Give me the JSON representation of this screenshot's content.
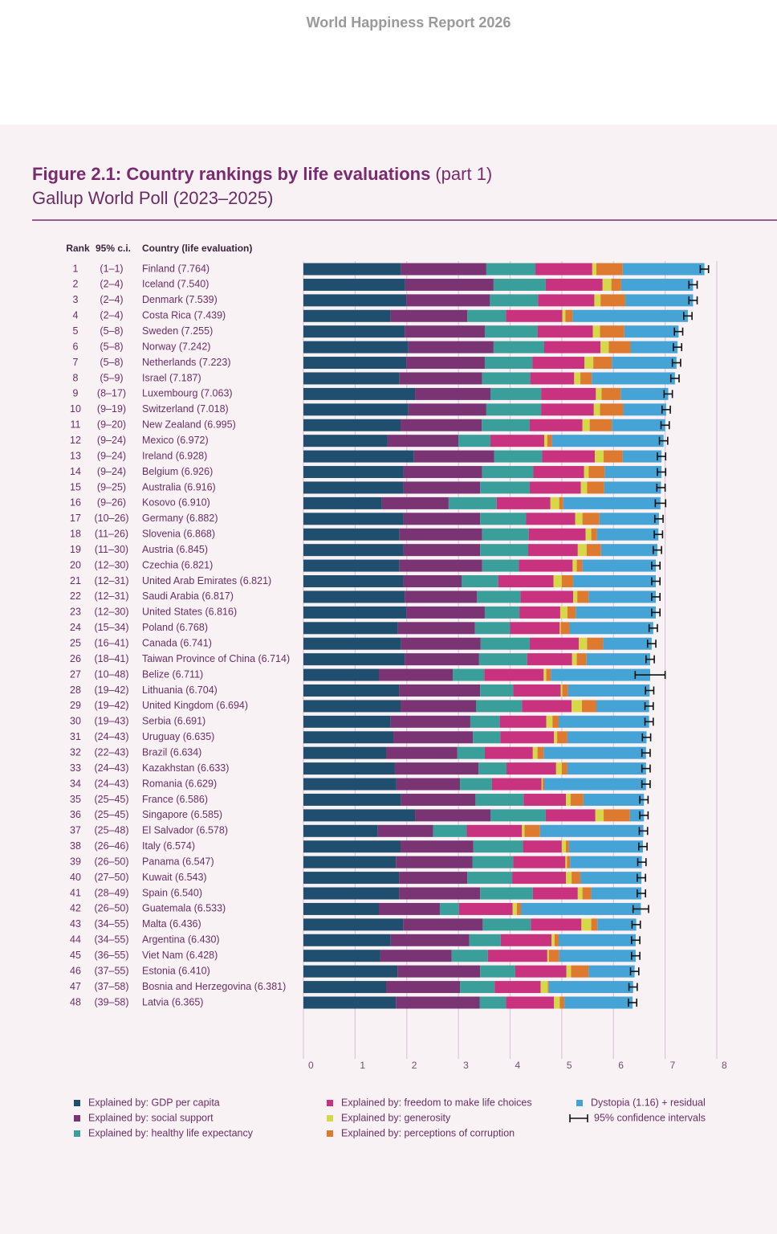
{
  "header": "World Happiness Report 2026",
  "chart_data": {
    "type": "bar",
    "orientation": "horizontal",
    "stacked": true,
    "title": "Figure 2.1: Country rankings by life evaluations",
    "title_suffix": "(part 1)",
    "subtitle": "Gallup World Poll (2023–2025)",
    "column_headers": [
      "Rank",
      "95% c.i.",
      "Country (life evaluation)"
    ],
    "ranks": [
      1,
      2,
      3,
      4,
      5,
      6,
      7,
      8,
      9,
      10,
      11,
      12,
      13,
      14,
      15,
      16,
      17,
      18,
      19,
      20,
      21,
      22,
      23,
      24,
      25,
      26,
      27,
      28,
      29,
      30,
      31,
      32,
      33,
      34,
      35,
      36,
      37,
      38,
      39,
      40,
      41,
      42,
      43,
      44,
      45,
      46,
      47,
      48
    ],
    "rank_ranges": [
      "(1–1)",
      "(2–4)",
      "(2–4)",
      "(2–4)",
      "(5–8)",
      "(5–8)",
      "(5–8)",
      "(5–9)",
      "(8–17)",
      "(9–19)",
      "(9–20)",
      "(9–24)",
      "(9–24)",
      "(9–24)",
      "(9–25)",
      "(9–26)",
      "(10–26)",
      "(11–26)",
      "(11–30)",
      "(12–30)",
      "(12–31)",
      "(12–31)",
      "(12–30)",
      "(15–34)",
      "(16–41)",
      "(18–41)",
      "(10–48)",
      "(19–42)",
      "(19–42)",
      "(19–43)",
      "(24–43)",
      "(22–43)",
      "(24–43)",
      "(24–43)",
      "(25–45)",
      "(25–45)",
      "(25–48)",
      "(26–46)",
      "(26–50)",
      "(27–50)",
      "(28–49)",
      "(26–50)",
      "(34–55)",
      "(34–55)",
      "(36–55)",
      "(37–55)",
      "(37–58)",
      "(39–58)"
    ],
    "categories": [
      "Finland (7.764)",
      "Iceland (7.540)",
      "Denmark (7.539)",
      "Costa Rica (7.439)",
      "Sweden (7.255)",
      "Norway (7.242)",
      "Netherlands (7.223)",
      "Israel (7.187)",
      "Luxembourg (7.063)",
      "Switzerland (7.018)",
      "New Zealand (6.995)",
      "Mexico (6.972)",
      "Ireland (6.928)",
      "Belgium (6.926)",
      "Australia (6.916)",
      "Kosovo (6.910)",
      "Germany (6.882)",
      "Slovenia (6.868)",
      "Austria (6.845)",
      "Czechia (6.821)",
      "United Arab Emirates (6.821)",
      "Saudi Arabia (6.817)",
      "United States (6.816)",
      "Poland (6.768)",
      "Canada (6.741)",
      "Taiwan Province of China (6.714)",
      "Belize (6.711)",
      "Lithuania (6.704)",
      "United Kingdom (6.694)",
      "Serbia (6.691)",
      "Uruguay (6.635)",
      "Brazil (6.634)",
      "Kazakhstan (6.633)",
      "Romania (6.629)",
      "France (6.586)",
      "Singapore (6.585)",
      "El Salvador (6.578)",
      "Italy (6.574)",
      "Panama (6.547)",
      "Kuwait (6.543)",
      "Spain (6.540)",
      "Guatemala (6.533)",
      "Malta (6.436)",
      "Argentina (6.430)",
      "Viet Nam (6.428)",
      "Estonia (6.410)",
      "Bosnia and Herzegovina (6.381)",
      "Latvia (6.365)"
    ],
    "series": [
      {
        "name": "Explained by: GDP per capita",
        "color": "#1f4e6e",
        "values": [
          1.89,
          1.97,
          1.99,
          1.69,
          1.96,
          2.03,
          1.99,
          1.86,
          2.16,
          2.03,
          1.88,
          1.63,
          2.14,
          1.94,
          1.94,
          1.52,
          1.94,
          1.86,
          1.94,
          1.86,
          1.94,
          1.96,
          1.99,
          1.83,
          1.89,
          1.96,
          1.46,
          1.85,
          1.88,
          1.69,
          1.74,
          1.6,
          1.77,
          1.8,
          1.89,
          2.16,
          1.44,
          1.88,
          1.79,
          1.85,
          1.85,
          1.46,
          1.93,
          1.69,
          1.49,
          1.82,
          1.6,
          1.79
        ]
      },
      {
        "name": "Explained by: social support",
        "color": "#7a3473",
        "values": [
          1.65,
          1.71,
          1.62,
          1.48,
          1.55,
          1.65,
          1.52,
          1.6,
          1.46,
          1.51,
          1.57,
          1.37,
          1.55,
          1.52,
          1.48,
          1.29,
          1.48,
          1.6,
          1.48,
          1.6,
          1.12,
          1.4,
          1.52,
          1.49,
          1.54,
          1.44,
          1.43,
          1.57,
          1.46,
          1.54,
          1.54,
          1.38,
          1.62,
          1.23,
          1.44,
          1.46,
          1.07,
          1.41,
          1.48,
          1.32,
          1.57,
          1.18,
          1.54,
          1.52,
          1.38,
          1.6,
          1.43,
          1.62
        ]
      },
      {
        "name": "Explained by: healthy life expectancy",
        "color": "#3a9e9a",
        "values": [
          0.95,
          1.01,
          0.93,
          0.75,
          1.02,
          0.98,
          0.92,
          0.93,
          0.98,
          1.06,
          0.93,
          0.62,
          0.93,
          0.99,
          0.96,
          0.93,
          0.89,
          0.9,
          0.93,
          0.71,
          0.71,
          0.84,
          0.67,
          0.68,
          0.95,
          0.93,
          0.61,
          0.64,
          0.89,
          0.57,
          0.53,
          0.53,
          0.54,
          0.62,
          0.93,
          1.07,
          0.65,
          0.96,
          0.79,
          0.87,
          1.02,
          0.37,
          0.93,
          0.61,
          0.7,
          0.68,
          0.67,
          0.51
        ]
      },
      {
        "name": "Explained by: freedom to make life choices",
        "color": "#c8327e",
        "values": [
          1.1,
          1.1,
          1.09,
          1.09,
          1.07,
          1.09,
          1.01,
          0.85,
          1.06,
          1.02,
          1.02,
          1.04,
          1.02,
          0.98,
          0.99,
          1.04,
          0.95,
          1.1,
          0.96,
          1.04,
          1.07,
          1.02,
          0.79,
          0.96,
          0.95,
          0.87,
          1.15,
          0.92,
          0.96,
          0.9,
          1.04,
          0.93,
          0.96,
          0.96,
          0.82,
          0.96,
          1.07,
          0.75,
          1.01,
          1.04,
          0.87,
          1.04,
          0.98,
          0.98,
          1.15,
          0.99,
          0.89,
          0.93
        ]
      },
      {
        "name": "Explained by: generosity",
        "color": "#d6d84a",
        "values": [
          0.08,
          0.17,
          0.12,
          0.06,
          0.14,
          0.16,
          0.17,
          0.12,
          0.11,
          0.12,
          0.14,
          0.06,
          0.17,
          0.09,
          0.12,
          0.17,
          0.14,
          0.11,
          0.17,
          0.08,
          0.16,
          0.08,
          0.14,
          0.02,
          0.16,
          0.09,
          0.05,
          0.03,
          0.2,
          0.12,
          0.06,
          0.09,
          0.11,
          0.02,
          0.09,
          0.16,
          0.05,
          0.08,
          0.03,
          0.11,
          0.09,
          0.08,
          0.19,
          0.06,
          0.03,
          0.09,
          0.14,
          0.11
        ]
      },
      {
        "name": "Explained by: perceptions of corruption",
        "color": "#dd7a2f",
        "values": [
          0.51,
          0.19,
          0.48,
          0.14,
          0.47,
          0.42,
          0.36,
          0.22,
          0.37,
          0.45,
          0.43,
          0.09,
          0.37,
          0.31,
          0.33,
          0.08,
          0.33,
          0.11,
          0.28,
          0.11,
          0.22,
          0.22,
          0.16,
          0.17,
          0.31,
          0.19,
          0.09,
          0.11,
          0.28,
          0.12,
          0.2,
          0.12,
          0.11,
          0.03,
          0.25,
          0.51,
          0.3,
          0.06,
          0.06,
          0.17,
          0.17,
          0.08,
          0.12,
          0.08,
          0.2,
          0.34,
          0.02,
          0.09
        ]
      },
      {
        "name": "Dystopia (1.16) + residual",
        "color": "#45a3d6",
        "values": [
          1.58,
          1.39,
          1.31,
          2.23,
          1.05,
          0.91,
          1.25,
          1.61,
          0.92,
          0.83,
          1.03,
          2.16,
          0.75,
          1.1,
          1.1,
          1.88,
          1.15,
          1.19,
          1.09,
          1.42,
          1.6,
          1.3,
          1.55,
          1.62,
          0.94,
          1.23,
          1.92,
          1.58,
          1.02,
          1.75,
          1.53,
          1.98,
          1.52,
          1.97,
          1.17,
          0.27,
          2.0,
          1.43,
          1.39,
          1.18,
          0.97,
          2.32,
          0.75,
          1.49,
          1.48,
          0.89,
          1.63,
          1.32
        ]
      }
    ],
    "errors": [
      0.08,
      0.08,
      0.08,
      0.08,
      0.08,
      0.08,
      0.08,
      0.08,
      0.08,
      0.08,
      0.08,
      0.08,
      0.08,
      0.08,
      0.08,
      0.1,
      0.08,
      0.08,
      0.08,
      0.08,
      0.08,
      0.08,
      0.08,
      0.08,
      0.08,
      0.08,
      0.29,
      0.08,
      0.08,
      0.08,
      0.08,
      0.08,
      0.08,
      0.08,
      0.08,
      0.08,
      0.08,
      0.08,
      0.08,
      0.08,
      0.08,
      0.15,
      0.08,
      0.08,
      0.08,
      0.08,
      0.08,
      0.08
    ],
    "error_color": "#111111",
    "error_legend": "95% confidence intervals",
    "xlim": [
      0,
      8
    ],
    "xticks": [
      0,
      1,
      2,
      3,
      4,
      5,
      6,
      7,
      8
    ],
    "grid": true,
    "grid_color": "#dcc6da"
  }
}
